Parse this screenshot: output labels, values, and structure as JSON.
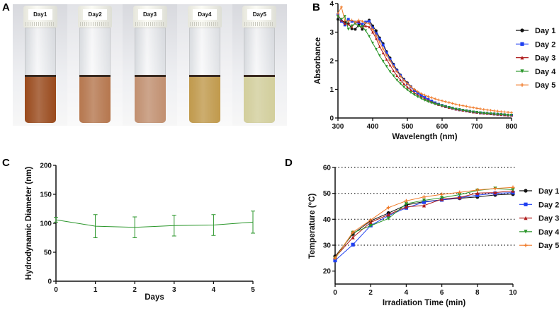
{
  "panel_labels": {
    "a": "A",
    "b": "B",
    "c": "C",
    "d": "D"
  },
  "photo": {
    "vials": [
      {
        "label": "Day1",
        "color": "#9a4a1c"
      },
      {
        "label": "Day2",
        "color": "#b6774e"
      },
      {
        "label": "Day3",
        "color": "#c29070"
      },
      {
        "label": "Day4",
        "color": "#c19a4c"
      },
      {
        "label": "Day5",
        "color": "#d3cf9c"
      }
    ]
  },
  "chart_data": [
    {
      "id": "B",
      "type": "line",
      "xlabel": "Wavelength (nm)",
      "ylabel": "Absorbance",
      "xlim": [
        300,
        800
      ],
      "ylim": [
        0,
        4
      ],
      "xticks": [
        300,
        400,
        500,
        600,
        700,
        800
      ],
      "yticks": [
        0,
        1,
        2,
        3,
        4
      ],
      "legend": "right",
      "grid": false,
      "x_start": 300,
      "x_step": 10,
      "series": [
        {
          "name": "Day 1",
          "color": "#111111",
          "marker": "circle",
          "values": [
            3.45,
            3.4,
            3.35,
            3.3,
            3.12,
            3.1,
            3.25,
            3.1,
            3.35,
            3.42,
            3.22,
            3.05,
            2.8,
            2.6,
            2.32,
            2.1,
            1.88,
            1.68,
            1.5,
            1.36,
            1.23,
            1.1,
            0.98,
            0.88,
            0.8,
            0.72,
            0.65,
            0.59,
            0.53,
            0.48,
            0.44,
            0.4,
            0.37,
            0.34,
            0.31,
            0.29,
            0.27,
            0.25,
            0.23,
            0.21,
            0.2,
            0.18,
            0.17,
            0.16,
            0.15,
            0.14,
            0.13,
            0.12,
            0.11,
            0.1,
            0.1
          ]
        },
        {
          "name": "Day 2",
          "color": "#1f3ff0",
          "marker": "square",
          "values": [
            3.62,
            3.38,
            3.25,
            3.45,
            3.38,
            3.35,
            3.33,
            3.28,
            3.35,
            3.38,
            3.15,
            2.95,
            2.75,
            2.55,
            2.28,
            2.05,
            1.85,
            1.65,
            1.48,
            1.33,
            1.2,
            1.08,
            0.96,
            0.87,
            0.79,
            0.72,
            0.65,
            0.59,
            0.53,
            0.48,
            0.44,
            0.4,
            0.37,
            0.34,
            0.31,
            0.29,
            0.27,
            0.25,
            0.23,
            0.21,
            0.2,
            0.18,
            0.17,
            0.16,
            0.15,
            0.14,
            0.13,
            0.12,
            0.11,
            0.1,
            0.1
          ]
        },
        {
          "name": "Day 3",
          "color": "#b01e1e",
          "marker": "triangle",
          "values": [
            3.6,
            3.42,
            3.3,
            3.28,
            3.18,
            3.32,
            3.38,
            3.18,
            3.22,
            3.18,
            3.0,
            2.78,
            2.5,
            2.28,
            2.05,
            1.85,
            1.65,
            1.48,
            1.33,
            1.2,
            1.08,
            0.98,
            0.88,
            0.8,
            0.73,
            0.67,
            0.61,
            0.56,
            0.51,
            0.47,
            0.43,
            0.4,
            0.37,
            0.34,
            0.31,
            0.29,
            0.27,
            0.25,
            0.23,
            0.21,
            0.2,
            0.18,
            0.17,
            0.16,
            0.15,
            0.14,
            0.13,
            0.12,
            0.11,
            0.1,
            0.1
          ]
        },
        {
          "name": "Day 4",
          "color": "#2a962a",
          "marker": "triangle-down",
          "values": [
            3.55,
            3.45,
            3.55,
            3.1,
            3.22,
            3.3,
            3.2,
            3.2,
            3.05,
            2.85,
            2.62,
            2.4,
            2.18,
            1.98,
            1.8,
            1.62,
            1.47,
            1.32,
            1.2,
            1.08,
            0.98,
            0.89,
            0.81,
            0.74,
            0.68,
            0.62,
            0.57,
            0.53,
            0.49,
            0.46,
            0.43,
            0.4,
            0.37,
            0.34,
            0.31,
            0.29,
            0.27,
            0.25,
            0.23,
            0.21,
            0.2,
            0.18,
            0.17,
            0.16,
            0.15,
            0.14,
            0.13,
            0.12,
            0.11,
            0.1,
            0.1
          ]
        },
        {
          "name": "Day 5",
          "color": "#f07a28",
          "marker": "plus",
          "values": [
            3.65,
            3.88,
            3.4,
            3.38,
            3.42,
            3.35,
            3.42,
            3.38,
            3.32,
            3.3,
            3.1,
            2.88,
            2.65,
            2.42,
            2.2,
            2.0,
            1.8,
            1.62,
            1.46,
            1.32,
            1.2,
            1.09,
            1.0,
            0.92,
            0.85,
            0.8,
            0.75,
            0.71,
            0.67,
            0.63,
            0.6,
            0.57,
            0.54,
            0.51,
            0.48,
            0.45,
            0.43,
            0.41,
            0.38,
            0.36,
            0.34,
            0.32,
            0.3,
            0.28,
            0.27,
            0.25,
            0.24,
            0.22,
            0.21,
            0.2,
            0.19
          ]
        }
      ]
    },
    {
      "id": "C",
      "type": "line",
      "xlabel": "Days",
      "ylabel": "Hydrodynamic Diameter (nm)",
      "xlim": [
        0,
        5
      ],
      "ylim": [
        0,
        200
      ],
      "xticks": [
        0,
        1,
        2,
        3,
        4,
        5
      ],
      "yticks": [
        0,
        50,
        100,
        150,
        200
      ],
      "legend": "none",
      "grid": false,
      "series": [
        {
          "name": "Diameter",
          "color": "#2a962a",
          "marker": "none",
          "x": [
            0,
            1,
            2,
            3,
            4,
            5
          ],
          "values": [
            106,
            95,
            93,
            96,
            97,
            102
          ],
          "errors": [
            4,
            20,
            18,
            18,
            18,
            19
          ]
        }
      ]
    },
    {
      "id": "D",
      "type": "line",
      "xlabel": "Irradiation Time (min)",
      "ylabel": "Temperature (°C)",
      "xlim": [
        0,
        10
      ],
      "ylim": [
        15,
        60
      ],
      "xticks": [
        0,
        2,
        4,
        6,
        8,
        10
      ],
      "yticks": [
        20,
        30,
        40,
        50,
        60
      ],
      "gridlines": [
        30,
        40,
        50,
        60
      ],
      "legend": "right",
      "grid": true,
      "x": [
        0,
        1,
        2,
        3,
        4,
        5,
        6,
        7,
        8,
        9,
        10
      ],
      "series": [
        {
          "name": "Day 1",
          "color": "#111111",
          "marker": "circle",
          "values": [
            25.7,
            34.3,
            39.4,
            42.4,
            45.5,
            46.8,
            47.5,
            48.1,
            48.6,
            49.4,
            49.7
          ]
        },
        {
          "name": "Day 2",
          "color": "#1f3ff0",
          "marker": "square",
          "values": [
            24.1,
            30.2,
            37.6,
            41.4,
            44.4,
            46.6,
            47.5,
            48.3,
            49.3,
            50.0,
            50.3
          ]
        },
        {
          "name": "Day 3",
          "color": "#b01e1e",
          "marker": "triangle",
          "values": [
            25.3,
            33.0,
            38.8,
            41.8,
            44.8,
            45.3,
            47.8,
            48.4,
            50.1,
            50.3,
            51.0
          ]
        },
        {
          "name": "Day 4",
          "color": "#2a962a",
          "marker": "triangle-down",
          "values": [
            24.9,
            34.8,
            37.5,
            40.3,
            46.0,
            47.3,
            48.3,
            49.5,
            51.1,
            51.9,
            51.4
          ]
        },
        {
          "name": "Day 5",
          "color": "#f07a28",
          "marker": "plus",
          "values": [
            25.0,
            35.0,
            39.7,
            44.5,
            47.1,
            48.6,
            49.6,
            50.4,
            51.3,
            51.9,
            52.3
          ]
        }
      ]
    }
  ]
}
